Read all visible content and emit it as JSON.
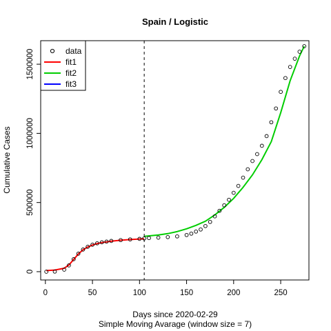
{
  "chart_data": {
    "type": "scatter",
    "title": "Spain / Logistic",
    "xlabel": "Days since 2020-02-29",
    "subtitle": "Simple Moving Avarage (window size = 7)",
    "ylabel": "Cumulative Cases",
    "xlim": [
      -5,
      280
    ],
    "ylim": [
      -60000,
      1670000
    ],
    "x_ticks": [
      0,
      50,
      100,
      150,
      200,
      250
    ],
    "y_ticks": [
      0,
      500000,
      1000000,
      1500000
    ],
    "vline_x": 105,
    "legend": {
      "position": "top-left",
      "entries": [
        {
          "label": "data",
          "symbol": "open-circle",
          "color": "#000000"
        },
        {
          "label": "fit1",
          "symbol": "line",
          "color": "#ff0000"
        },
        {
          "label": "fit2",
          "symbol": "line",
          "color": "#00cd00"
        },
        {
          "label": "fit3",
          "symbol": "line",
          "color": "#0000ff"
        }
      ]
    },
    "data_points": {
      "x": [
        1,
        10,
        20,
        25,
        30,
        35,
        40,
        45,
        50,
        55,
        60,
        65,
        70,
        80,
        90,
        100,
        105,
        110,
        120,
        130,
        140,
        150,
        155,
        160,
        165,
        170,
        175,
        180,
        185,
        190,
        195,
        200,
        205,
        210,
        215,
        220,
        225,
        230,
        235,
        240,
        245,
        250,
        255,
        260,
        265,
        270,
        275
      ],
      "y": [
        0,
        1000,
        15000,
        45000,
        90000,
        130000,
        160000,
        180000,
        195000,
        205000,
        212000,
        217000,
        222000,
        228000,
        233000,
        237000,
        240000,
        243000,
        246000,
        250000,
        255000,
        265000,
        275000,
        290000,
        305000,
        330000,
        360000,
        400000,
        440000,
        480000,
        520000,
        570000,
        620000,
        680000,
        740000,
        800000,
        850000,
        910000,
        980000,
        1080000,
        1180000,
        1300000,
        1400000,
        1480000,
        1540000,
        1590000,
        1630000
      ]
    },
    "fit1": {
      "x": [
        1,
        10,
        20,
        25,
        30,
        35,
        40,
        45,
        50,
        55,
        60,
        70,
        80,
        90,
        100,
        105
      ],
      "y": [
        8000,
        12000,
        25000,
        48000,
        88000,
        128000,
        158000,
        178000,
        193000,
        203000,
        210000,
        220000,
        227000,
        232000,
        236000,
        238000
      ]
    },
    "fit2": {
      "x": [
        105,
        120,
        130,
        140,
        150,
        160,
        170,
        180,
        190,
        200,
        210,
        220,
        230,
        240,
        250,
        260,
        270,
        275
      ],
      "y": [
        255000,
        265000,
        275000,
        290000,
        310000,
        335000,
        365000,
        410000,
        465000,
        530000,
        610000,
        700000,
        810000,
        940000,
        1150000,
        1380000,
        1560000,
        1630000
      ]
    },
    "fit3": {
      "x": [],
      "y": []
    }
  }
}
